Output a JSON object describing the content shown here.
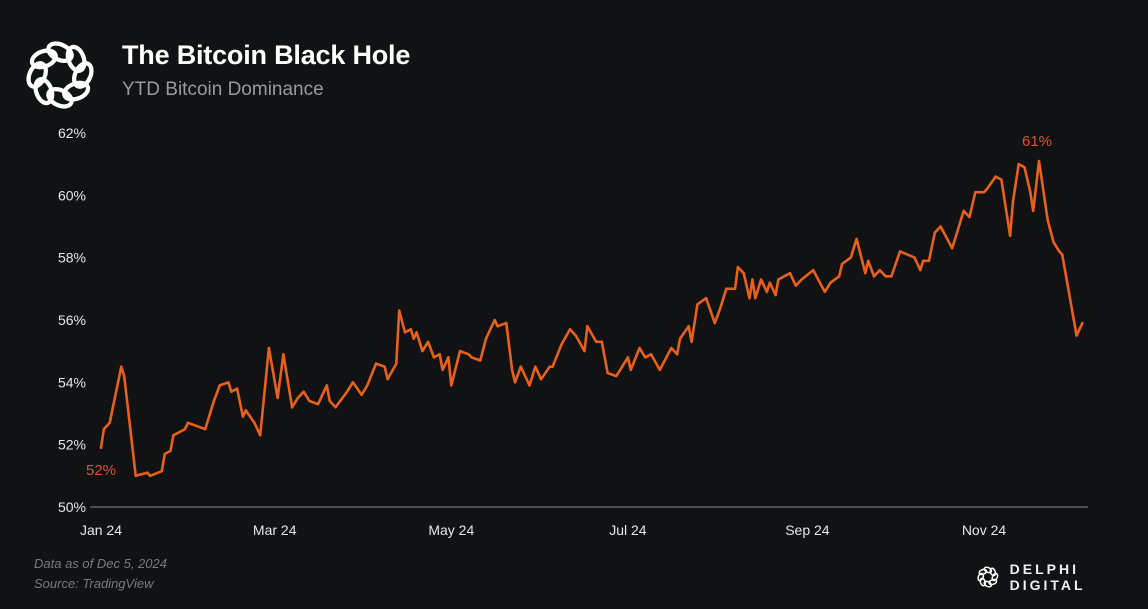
{
  "header": {
    "title": "The Bitcoin Black Hole",
    "subtitle": "YTD Bitcoin Dominance"
  },
  "footer": {
    "note": "Data as of Dec 5, 2024",
    "source": "Source: TradingView"
  },
  "brand": {
    "name": "DELPHI DIGITAL",
    "logo": "delphi-knot-logo"
  },
  "colors": {
    "background": "#111214",
    "line": "#e8611c",
    "annotation": "#d9553a",
    "axis": "#8a8a8a"
  },
  "chart_data": {
    "type": "line",
    "title": "The Bitcoin Black Hole",
    "subtitle": "YTD Bitcoin Dominance",
    "xlabel": "",
    "ylabel": "",
    "ylim": [
      50,
      62
    ],
    "xlim": [
      "2024-01-01",
      "2024-12-05"
    ],
    "grid": false,
    "yticks": [
      "50%",
      "52%",
      "54%",
      "56%",
      "58%",
      "60%",
      "62%"
    ],
    "ytick_values": [
      50,
      52,
      54,
      56,
      58,
      60,
      62
    ],
    "xticks": [
      "Jan 24",
      "Mar 24",
      "May 24",
      "Jul 24",
      "Sep 24",
      "Nov 24"
    ],
    "xtick_dates": [
      "2024-01-01",
      "2024-03-01",
      "2024-05-01",
      "2024-07-01",
      "2024-09-01",
      "2024-11-01"
    ],
    "annotations": [
      {
        "text": "52%",
        "date": "2024-01-01",
        "value": 51.9
      },
      {
        "text": "61%",
        "date": "2024-11-20",
        "value": 61.1
      }
    ],
    "series": [
      {
        "x": [
          "2024-01-01",
          "2024-01-02",
          "2024-01-04",
          "2024-01-08",
          "2024-01-09",
          "2024-01-11",
          "2024-01-13",
          "2024-01-17",
          "2024-01-18",
          "2024-01-22",
          "2024-01-23",
          "2024-01-25",
          "2024-01-26",
          "2024-01-30",
          "2024-01-31",
          "2024-02-06",
          "2024-02-09",
          "2024-02-11",
          "2024-02-14",
          "2024-02-15",
          "2024-02-17",
          "2024-02-19",
          "2024-02-20",
          "2024-02-23",
          "2024-02-25",
          "2024-02-28",
          "2024-03-02",
          "2024-03-04",
          "2024-03-07",
          "2024-03-09",
          "2024-03-11",
          "2024-03-13",
          "2024-03-16",
          "2024-03-19",
          "2024-03-20",
          "2024-03-22",
          "2024-03-26",
          "2024-03-28",
          "2024-03-31",
          "2024-04-02",
          "2024-04-05",
          "2024-04-08",
          "2024-04-09",
          "2024-04-12",
          "2024-04-13",
          "2024-04-15",
          "2024-04-17",
          "2024-04-18",
          "2024-04-19",
          "2024-04-21",
          "2024-04-23",
          "2024-04-25",
          "2024-04-27",
          "2024-04-28",
          "2024-04-30",
          "2024-05-01",
          "2024-05-04",
          "2024-05-07",
          "2024-05-08",
          "2024-05-11",
          "2024-05-13",
          "2024-05-16",
          "2024-05-17",
          "2024-05-20",
          "2024-05-22",
          "2024-05-23",
          "2024-05-25",
          "2024-05-28",
          "2024-05-30",
          "2024-06-01",
          "2024-06-04",
          "2024-06-05",
          "2024-06-08",
          "2024-06-11",
          "2024-06-13",
          "2024-06-16",
          "2024-06-17",
          "2024-06-20",
          "2024-06-22",
          "2024-06-24",
          "2024-06-27",
          "2024-07-01",
          "2024-07-02",
          "2024-07-05",
          "2024-07-07",
          "2024-07-09",
          "2024-07-12",
          "2024-07-16",
          "2024-07-18",
          "2024-07-19",
          "2024-07-22",
          "2024-07-23",
          "2024-07-25",
          "2024-07-28",
          "2024-07-31",
          "2024-08-02",
          "2024-08-04",
          "2024-08-07",
          "2024-08-08",
          "2024-08-10",
          "2024-08-12",
          "2024-08-13",
          "2024-08-14",
          "2024-08-16",
          "2024-08-18",
          "2024-08-19",
          "2024-08-21",
          "2024-08-22",
          "2024-08-26",
          "2024-08-28",
          "2024-08-30",
          "2024-09-03",
          "2024-09-07",
          "2024-09-09",
          "2024-09-12",
          "2024-09-13",
          "2024-09-16",
          "2024-09-18",
          "2024-09-21",
          "2024-09-22",
          "2024-09-24",
          "2024-09-26",
          "2024-09-28",
          "2024-09-30",
          "2024-10-03",
          "2024-10-08",
          "2024-10-10",
          "2024-10-11",
          "2024-10-13",
          "2024-10-15",
          "2024-10-17",
          "2024-10-21",
          "2024-10-25",
          "2024-10-27",
          "2024-10-29",
          "2024-11-01",
          "2024-11-02",
          "2024-11-05",
          "2024-11-07",
          "2024-11-10",
          "2024-11-11",
          "2024-11-13",
          "2024-11-15",
          "2024-11-17",
          "2024-11-18",
          "2024-11-20",
          "2024-11-23",
          "2024-11-25",
          "2024-11-27",
          "2024-11-28",
          "2024-12-03",
          "2024-12-05"
        ],
        "y": [
          51.9,
          52.5,
          52.7,
          54.5,
          54.2,
          52.6,
          51.0,
          51.1,
          51.0,
          51.15,
          51.7,
          51.8,
          52.3,
          52.5,
          52.7,
          52.5,
          53.4,
          53.9,
          54.0,
          53.7,
          53.8,
          52.9,
          53.1,
          52.7,
          52.3,
          55.1,
          53.5,
          54.9,
          53.2,
          53.5,
          53.7,
          53.4,
          53.3,
          53.9,
          53.4,
          53.2,
          53.7,
          54.0,
          53.6,
          53.9,
          54.6,
          54.5,
          54.1,
          54.6,
          56.3,
          55.6,
          55.7,
          55.4,
          55.6,
          55.0,
          55.3,
          54.8,
          54.9,
          54.4,
          54.8,
          53.9,
          55.0,
          54.9,
          54.8,
          54.7,
          55.4,
          56.0,
          55.8,
          55.9,
          54.4,
          54.0,
          54.5,
          53.9,
          54.5,
          54.1,
          54.5,
          54.5,
          55.2,
          55.7,
          55.5,
          55.0,
          55.8,
          55.3,
          55.3,
          54.3,
          54.2,
          54.8,
          54.4,
          55.1,
          54.8,
          54.9,
          54.4,
          55.1,
          54.9,
          55.4,
          55.8,
          55.3,
          56.5,
          56.7,
          55.9,
          56.4,
          57.0,
          57.0,
          57.7,
          57.5,
          56.7,
          57.3,
          56.7,
          57.3,
          56.9,
          57.2,
          56.8,
          57.3,
          57.5,
          57.1,
          57.3,
          57.6,
          56.9,
          57.2,
          57.4,
          57.8,
          58.0,
          58.6,
          57.5,
          57.9,
          57.4,
          57.6,
          57.4,
          57.4,
          58.2,
          58.0,
          57.6,
          57.9,
          57.9,
          58.8,
          59.0,
          58.3,
          59.5,
          59.3,
          60.1,
          60.1,
          60.2,
          60.6,
          60.5,
          58.7,
          59.8,
          61.0,
          60.9,
          60.1,
          59.5,
          61.1,
          59.2,
          58.5,
          58.2,
          58.1,
          55.5,
          55.9
        ]
      }
    ]
  }
}
